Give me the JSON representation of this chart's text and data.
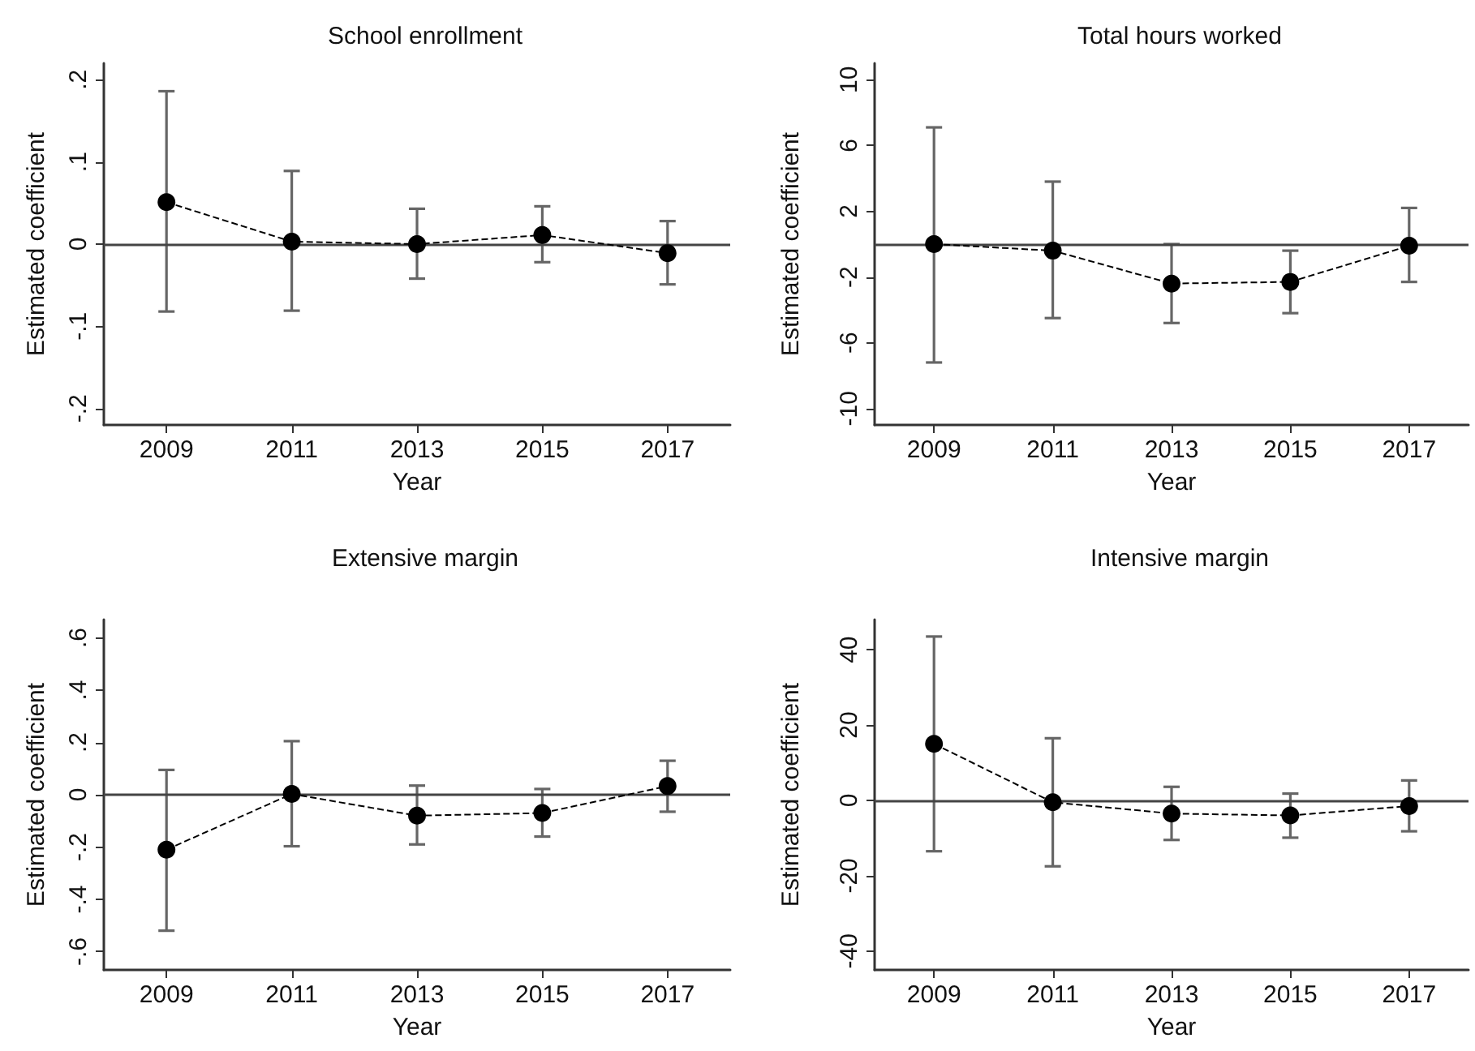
{
  "chart_data": [
    {
      "type": "line",
      "title": "School enrollment",
      "xlabel": "Year",
      "ylabel": "Estimated coefficient",
      "x": [
        2009,
        2011,
        2013,
        2015,
        2017
      ],
      "xlim": [
        2008,
        2018
      ],
      "xticks": [
        2009,
        2011,
        2013,
        2015,
        2017
      ],
      "ylim": [
        -0.22,
        0.22
      ],
      "yticks": [
        {
          "value": -0.2,
          "label": "-.2"
        },
        {
          "value": -0.1,
          "label": "-.1"
        },
        0,
        {
          "value": 0.1,
          "label": ".1"
        },
        {
          "value": 0.2,
          "label": ".2"
        }
      ],
      "marker": "circle",
      "line_style": "dashed",
      "ref_lines": [
        {
          "axis": "y",
          "value": 0
        }
      ],
      "series": [
        {
          "color": "#000000",
          "values": [
            0.051,
            0.003,
            0,
            0.011,
            -0.011
          ],
          "errors": [
            [
              -0.082,
              0.186
            ],
            [
              -0.081,
              0.089
            ],
            [
              -0.042,
              0.043
            ],
            [
              -0.022,
              0.046
            ],
            [
              -0.049,
              0.028
            ]
          ]
        }
      ]
    },
    {
      "type": "line",
      "title": "Total hours worked",
      "xlabel": "Year",
      "ylabel": "Estimated coefficient",
      "x": [
        2009,
        2011,
        2013,
        2015,
        2017
      ],
      "xlim": [
        2008,
        2018
      ],
      "xticks": [
        2009,
        2011,
        2013,
        2015,
        2017
      ],
      "ylim": [
        -11,
        11
      ],
      "yticks": [
        -10,
        -6,
        -2,
        2,
        6,
        10
      ],
      "marker": "circle",
      "line_style": "dashed",
      "ref_lines": [
        {
          "axis": "y",
          "value": 0
        }
      ],
      "series": [
        {
          "color": "#000000",
          "values": [
            0,
            -0.4,
            -2.4,
            -2.3,
            -0.1
          ],
          "errors": [
            [
              -7.2,
              7.1
            ],
            [
              -4.5,
              3.8
            ],
            [
              -4.8,
              0
            ],
            [
              -4.2,
              -0.4
            ],
            [
              -2.3,
              2.2
            ]
          ]
        }
      ]
    },
    {
      "type": "line",
      "title": "Extensive margin",
      "xlabel": "Year",
      "ylabel": "Estimated coefficient",
      "x": [
        2009,
        2011,
        2013,
        2015,
        2017
      ],
      "xlim": [
        2008,
        2018
      ],
      "xticks": [
        2009,
        2011,
        2013,
        2015,
        2017
      ],
      "ylim": [
        -0.67,
        0.67
      ],
      "yticks": [
        {
          "value": -0.6,
          "label": "-.6"
        },
        {
          "value": -0.4,
          "label": "-.4"
        },
        {
          "value": -0.2,
          "label": "-.2"
        },
        0,
        {
          "value": 0.2,
          "label": ".2"
        },
        {
          "value": 0.4,
          "label": ".4"
        },
        {
          "value": 0.6,
          "label": ".6"
        }
      ],
      "marker": "circle",
      "line_style": "dashed",
      "ref_lines": [
        {
          "axis": "y",
          "value": 0
        }
      ],
      "series": [
        {
          "color": "#000000",
          "values": [
            -0.21,
            0.003,
            -0.08,
            -0.07,
            0.033
          ],
          "errors": [
            [
              -0.52,
              0.095
            ],
            [
              -0.197,
              0.205
            ],
            [
              -0.19,
              0.035
            ],
            [
              -0.16,
              0.022
            ],
            [
              -0.065,
              0.13
            ]
          ]
        }
      ]
    },
    {
      "type": "line",
      "title": "Intensive margin",
      "xlabel": "Year",
      "ylabel": "Estimated coefficient",
      "x": [
        2009,
        2011,
        2013,
        2015,
        2017
      ],
      "xlim": [
        2008,
        2018
      ],
      "xticks": [
        2009,
        2011,
        2013,
        2015,
        2017
      ],
      "ylim": [
        -45,
        48
      ],
      "yticks": [
        -40,
        -20,
        0,
        20,
        40
      ],
      "marker": "circle",
      "line_style": "dashed",
      "ref_lines": [
        {
          "axis": "y",
          "value": 0
        }
      ],
      "series": [
        {
          "color": "#000000",
          "values": [
            15,
            -0.5,
            -3.5,
            -4,
            -1.5
          ],
          "errors": [
            [
              -13.5,
              43.5
            ],
            [
              -17.5,
              16.5
            ],
            [
              -10.5,
              3.6
            ],
            [
              -9.9,
              1.8
            ],
            [
              -8.2,
              5.3
            ]
          ]
        }
      ]
    }
  ]
}
